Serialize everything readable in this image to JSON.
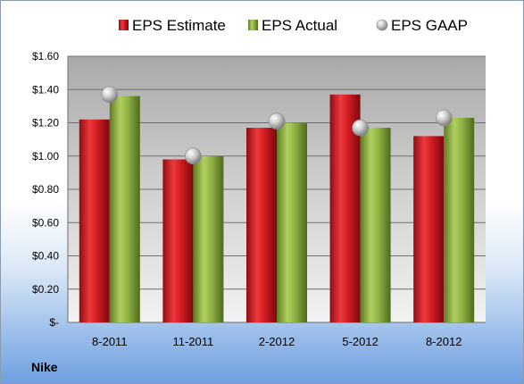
{
  "company": "Nike",
  "chart_data": {
    "type": "bar",
    "categories": [
      "8-2011",
      "11-2011",
      "2-2012",
      "5-2012",
      "8-2012"
    ],
    "series": [
      {
        "name": "EPS Estimate",
        "type": "bar",
        "values": [
          1.22,
          0.98,
          1.17,
          1.37,
          1.12
        ],
        "color": "#c8141e"
      },
      {
        "name": "EPS Actual",
        "type": "bar",
        "values": [
          1.36,
          1.0,
          1.2,
          1.17,
          1.23
        ],
        "color": "#8db040"
      },
      {
        "name": "EPS GAAP",
        "type": "scatter",
        "values": [
          1.37,
          1.0,
          1.21,
          1.17,
          1.23
        ],
        "color": "#c0c0c0"
      }
    ],
    "yticks": [
      "$-",
      "$0.20",
      "$0.40",
      "$0.60",
      "$0.80",
      "$1.00",
      "$1.20",
      "$1.40",
      "$1.60"
    ],
    "ylim": [
      0,
      1.6
    ],
    "grid": true,
    "legend": "top"
  }
}
